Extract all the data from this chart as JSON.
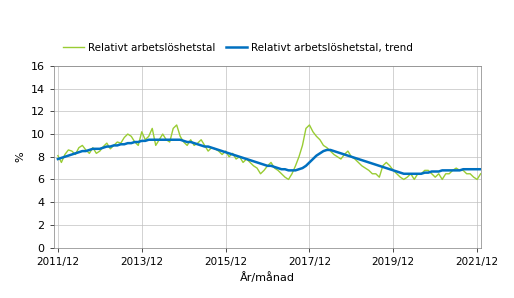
{
  "title": "",
  "xlabel": "År/månad",
  "ylabel": "%",
  "ylim": [
    0,
    16
  ],
  "yticks": [
    0,
    2,
    4,
    6,
    8,
    10,
    12,
    14,
    16
  ],
  "xtick_labels": [
    "2011/12",
    "2013/12",
    "2015/12",
    "2017/12",
    "2019/12",
    "2021/12"
  ],
  "legend_labels": [
    "Relativt arbetslöshetstal",
    "Relativt arbetslöshetstal, trend"
  ],
  "line_color_actual": "#99cc33",
  "line_color_trend": "#0070c0",
  "background_color": "#ffffff",
  "grid_color": "#c0c0c0",
  "actual": [
    8.1,
    7.5,
    8.2,
    8.6,
    8.5,
    8.2,
    8.8,
    9.0,
    8.6,
    8.3,
    8.8,
    8.3,
    8.5,
    8.9,
    9.2,
    8.7,
    9.0,
    9.3,
    9.2,
    9.7,
    10.0,
    9.8,
    9.3,
    9.0,
    10.2,
    9.5,
    9.8,
    10.5,
    9.0,
    9.5,
    10.0,
    9.5,
    9.3,
    10.5,
    10.8,
    9.8,
    9.3,
    9.0,
    9.5,
    9.0,
    9.2,
    9.5,
    9.0,
    8.5,
    8.8,
    8.7,
    8.5,
    8.2,
    8.5,
    8.0,
    8.3,
    7.8,
    8.0,
    7.5,
    7.8,
    7.5,
    7.2,
    7.0,
    6.5,
    6.8,
    7.2,
    7.5,
    7.0,
    6.8,
    6.5,
    6.2,
    6.0,
    6.5,
    7.2,
    8.0,
    9.0,
    10.5,
    10.8,
    10.2,
    9.8,
    9.5,
    9.0,
    8.8,
    8.5,
    8.2,
    8.0,
    7.8,
    8.2,
    8.5,
    8.0,
    7.8,
    7.5,
    7.2,
    7.0,
    6.8,
    6.5,
    6.5,
    6.2,
    7.2,
    7.5,
    7.2,
    6.8,
    6.5,
    6.2,
    6.0,
    6.2,
    6.5,
    6.0,
    6.5,
    6.5,
    6.8,
    6.8,
    6.5,
    6.2,
    6.5,
    6.0,
    6.5,
    6.5,
    6.8,
    7.0,
    6.8,
    6.8,
    6.5,
    6.5,
    6.2,
    6.0,
    6.5
  ],
  "trend": [
    7.8,
    7.9,
    8.0,
    8.1,
    8.2,
    8.3,
    8.4,
    8.5,
    8.5,
    8.6,
    8.7,
    8.7,
    8.7,
    8.8,
    8.9,
    8.9,
    9.0,
    9.0,
    9.1,
    9.1,
    9.2,
    9.2,
    9.3,
    9.3,
    9.4,
    9.4,
    9.5,
    9.5,
    9.5,
    9.5,
    9.5,
    9.5,
    9.5,
    9.5,
    9.5,
    9.5,
    9.4,
    9.3,
    9.3,
    9.2,
    9.1,
    9.0,
    8.9,
    8.9,
    8.8,
    8.7,
    8.6,
    8.5,
    8.4,
    8.3,
    8.2,
    8.1,
    8.0,
    7.9,
    7.8,
    7.7,
    7.6,
    7.5,
    7.4,
    7.3,
    7.2,
    7.2,
    7.1,
    7.0,
    6.9,
    6.9,
    6.8,
    6.8,
    6.8,
    6.9,
    7.0,
    7.2,
    7.5,
    7.8,
    8.1,
    8.3,
    8.5,
    8.6,
    8.6,
    8.5,
    8.4,
    8.3,
    8.2,
    8.1,
    8.0,
    7.9,
    7.8,
    7.7,
    7.6,
    7.5,
    7.4,
    7.3,
    7.2,
    7.1,
    7.0,
    6.9,
    6.8,
    6.7,
    6.6,
    6.5,
    6.5,
    6.5,
    6.5,
    6.5,
    6.5,
    6.6,
    6.6,
    6.7,
    6.7,
    6.7,
    6.8,
    6.8,
    6.8,
    6.8,
    6.8,
    6.8,
    6.9,
    6.9,
    6.9,
    6.9,
    6.9,
    6.9
  ]
}
